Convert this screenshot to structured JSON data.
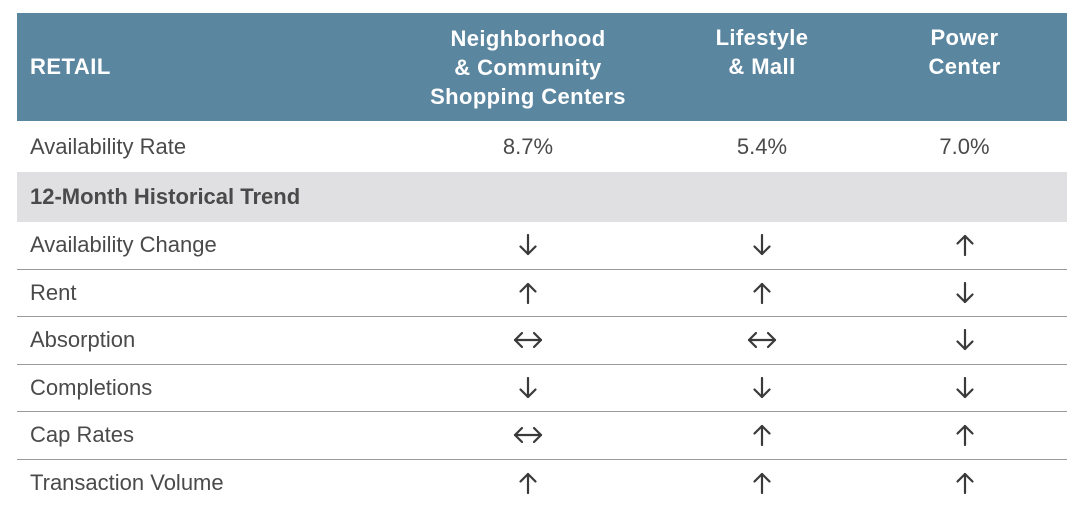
{
  "table": {
    "header": {
      "title": "RETAIL",
      "columns": [
        [
          "Neighborhood",
          "& Community",
          "Shopping Centers"
        ],
        [
          "Lifestyle",
          "& Mall"
        ],
        [
          "Power",
          "Center"
        ]
      ]
    },
    "availability": {
      "label": "Availability Rate",
      "values": [
        "8.7%",
        "5.4%",
        "7.0%"
      ]
    },
    "section_title": "12-Month Historical Trend",
    "trend_rows": [
      {
        "label": "Availability Change",
        "arrows": [
          "down",
          "down",
          "up"
        ]
      },
      {
        "label": "Rent",
        "arrows": [
          "up",
          "up",
          "down"
        ]
      },
      {
        "label": "Absorption",
        "arrows": [
          "flat",
          "flat",
          "down"
        ]
      },
      {
        "label": "Completions",
        "arrows": [
          "down",
          "down",
          "down"
        ]
      },
      {
        "label": "Cap Rates",
        "arrows": [
          "flat",
          "up",
          "up"
        ]
      },
      {
        "label": "Transaction Volume",
        "arrows": [
          "up",
          "up",
          "up"
        ]
      }
    ]
  },
  "colors": {
    "header_bg": "#5a86a0",
    "section_bg": "#e0e0e2",
    "text": "#4a4a4a",
    "arrow": "#3a3a3a"
  },
  "icons": {
    "up": "arrow-up-icon",
    "down": "arrow-down-icon",
    "flat": "arrow-left-right-icon"
  }
}
